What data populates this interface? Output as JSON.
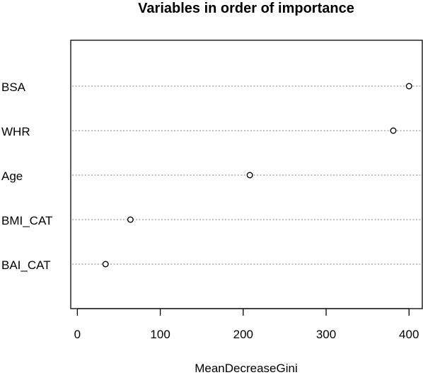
{
  "chart_data": {
    "type": "scatter",
    "title": "Variables in order of importance",
    "xlabel": "MeanDecreaseGini",
    "ylabel": "",
    "categories": [
      "BSA",
      "WHR",
      "Age",
      "BMI_CAT",
      "BAI_CAT"
    ],
    "values": [
      400,
      381,
      208,
      64,
      34
    ],
    "xlim": [
      -8,
      416
    ],
    "xticks": [
      "0",
      "100",
      "200",
      "300",
      "400"
    ],
    "grid": "dotted horizontal lines at each variable",
    "marker": "open-circle",
    "colors": {
      "marker": "#000000",
      "grid": "#808080",
      "axis": "#000000"
    }
  }
}
